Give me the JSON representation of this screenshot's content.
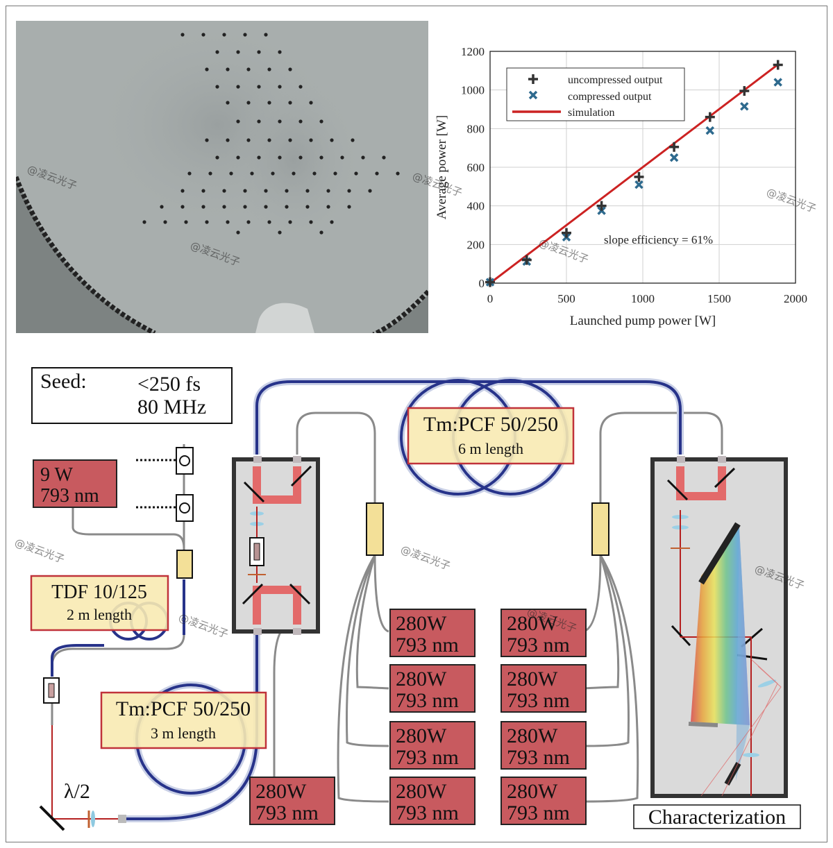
{
  "watermark": "@凌云光子",
  "photo": {
    "description_icon": "fiber-cross-section-micrograph"
  },
  "chart_data": {
    "type": "scatter",
    "xlabel": "Launched pump power [W]",
    "ylabel": "Average power [W]",
    "xlim": [
      0,
      2000
    ],
    "ylim": [
      0,
      1200
    ],
    "xticks": [
      "0",
      "500",
      "1000",
      "1500",
      "2000"
    ],
    "yticks": [
      "0",
      "200",
      "400",
      "600",
      "800",
      "1000",
      "1200"
    ],
    "grid": true,
    "legend_position": "top-left",
    "annotation": "slope efficiency = 61%",
    "series": [
      {
        "name": "uncompressed output",
        "marker": "plus",
        "color": "#333333",
        "x": [
          0,
          240,
          500,
          730,
          975,
          1205,
          1440,
          1665,
          1885
        ],
        "y": [
          5,
          120,
          260,
          400,
          550,
          705,
          860,
          995,
          1130
        ]
      },
      {
        "name": "compressed output",
        "marker": "cross",
        "color": "#2e6a8e",
        "x": [
          0,
          240,
          500,
          730,
          975,
          1205,
          1440,
          1665,
          1885
        ],
        "y": [
          5,
          112,
          238,
          375,
          510,
          650,
          790,
          915,
          1040
        ]
      },
      {
        "name": "simulation",
        "marker": "line",
        "color": "#cc2222",
        "x": [
          0,
          1890
        ],
        "y": [
          0,
          1135
        ]
      }
    ]
  },
  "diagram": {
    "seed_label": "Seed:",
    "seed_line1": "<250 fs",
    "seed_line2": "80 MHz",
    "pump9_line1": "9 W",
    "pump9_line2": "793 nm",
    "tdf_line1": "TDF 10/125",
    "tdf_line2": "2 m length",
    "pcf3_line1": "Tm:PCF 50/250",
    "pcf3_line2": "3 m length",
    "pcf6_line1": "Tm:PCF 50/250",
    "pcf6_line2": "6 m length",
    "lambda": "λ/2",
    "characterization": "Characterization",
    "pump_power": "280W",
    "pump_wavelength": "793 nm",
    "colors": {
      "fiber": "#27338a",
      "pump_box": "#c85a5f",
      "label_box": "#f8eab2",
      "box_border": "#c0323a"
    }
  }
}
